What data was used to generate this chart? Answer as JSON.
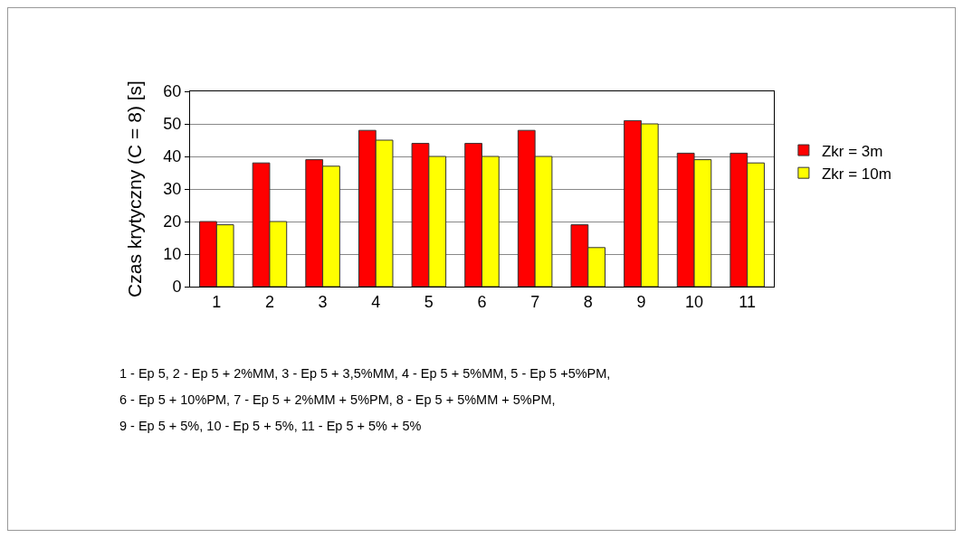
{
  "chart_data": {
    "type": "bar",
    "ylabel": "Czas krytyczny (C = 8) [s]",
    "categories": [
      "1",
      "2",
      "3",
      "4",
      "5",
      "6",
      "7",
      "8",
      "9",
      "10",
      "11"
    ],
    "series": [
      {
        "name": "Zkr = 3m",
        "color": "#ff0000",
        "values": [
          20,
          38,
          39,
          48,
          44,
          44,
          48,
          19,
          51,
          41,
          41
        ]
      },
      {
        "name": "Zkr = 10m",
        "color": "#ffff00",
        "values": [
          19,
          20,
          37,
          45,
          40,
          40,
          40,
          12,
          50,
          39,
          38
        ]
      }
    ],
    "ylim": [
      0,
      60
    ],
    "yticks": [
      0,
      10,
      20,
      30,
      40,
      50,
      60
    ],
    "grid": "y",
    "legend": "right",
    "annotations": [
      "1 - Ep 5, 2 - Ep 5 + 2%MM, 3 - Ep 5 + 3,5%MM, 4 - Ep 5 + 5%MM, 5 - Ep 5 +5%PM,",
      "6 - Ep 5 + 10%PM, 7 - Ep 5 + 2%MM + 5%PM, 8 - Ep 5 + 5%MM + 5%PM,",
      "9 - Ep 5 + 5%, 10 - Ep 5 + 5%, 11 - Ep 5 + 5% + 5%"
    ]
  }
}
